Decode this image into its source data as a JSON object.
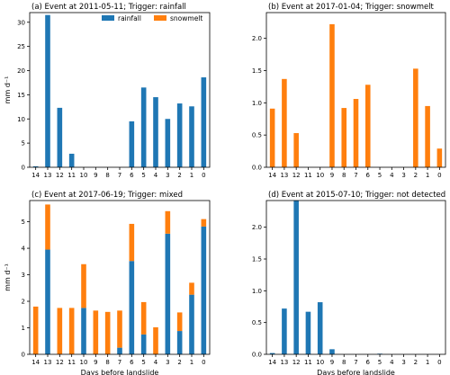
{
  "colors": {
    "rainfall": "#1f77b4",
    "snowmelt": "#ff7f0e",
    "axis": "#000000"
  },
  "chart_data": [
    {
      "type": "bar",
      "stacked": true,
      "title": "(a) Event at 2011-05-11; Trigger: rainfall",
      "xlabel": "",
      "ylabel": "mm d⁻¹",
      "categories": [
        "14",
        "13",
        "12",
        "11",
        "10",
        "9",
        "8",
        "7",
        "6",
        "5",
        "4",
        "3",
        "2",
        "1",
        "0"
      ],
      "series": [
        {
          "name": "rainfall",
          "values": [
            0.2,
            31.5,
            12.3,
            2.8,
            0,
            0,
            0,
            0,
            9.5,
            16.5,
            14.5,
            10.0,
            13.2,
            12.6,
            18.6
          ]
        },
        {
          "name": "snowmelt",
          "values": [
            0,
            0,
            0,
            0,
            0,
            0,
            0,
            0,
            0,
            0,
            0,
            0,
            0,
            0,
            0
          ]
        }
      ],
      "ylim": [
        0,
        32
      ],
      "yticks": [
        0,
        5,
        10,
        15,
        20,
        25,
        30
      ],
      "legend": {
        "position": "top-center",
        "entries": [
          "rainfall",
          "snowmelt"
        ]
      }
    },
    {
      "type": "bar",
      "stacked": true,
      "title": "(b) Event at 2017-01-04; Trigger: snowmelt",
      "xlabel": "",
      "ylabel": "",
      "categories": [
        "14",
        "13",
        "12",
        "11",
        "10",
        "9",
        "8",
        "7",
        "6",
        "5",
        "4",
        "3",
        "2",
        "1",
        "0"
      ],
      "series": [
        {
          "name": "rainfall",
          "values": [
            0,
            0,
            0,
            0,
            0,
            0,
            0,
            0,
            0,
            0,
            0,
            0,
            0,
            0,
            0
          ]
        },
        {
          "name": "snowmelt",
          "values": [
            0.91,
            1.37,
            0.53,
            0,
            0,
            2.22,
            0.92,
            1.06,
            1.28,
            0,
            0,
            0,
            1.53,
            0.95,
            0.29
          ]
        }
      ],
      "ylim": [
        0,
        2.4
      ],
      "yticks": [
        0.0,
        0.5,
        1.0,
        1.5,
        2.0
      ],
      "ytick_labels": [
        "0.0",
        "0.5",
        "1.0",
        "1.5",
        "2.0"
      ]
    },
    {
      "type": "bar",
      "stacked": true,
      "title": "(c) Event at 2017-06-19; Trigger: mixed",
      "xlabel": "Days before landslide",
      "ylabel": "mm d⁻¹",
      "categories": [
        "14",
        "13",
        "12",
        "11",
        "10",
        "9",
        "8",
        "7",
        "6",
        "5",
        "4",
        "3",
        "2",
        "1",
        "0"
      ],
      "series": [
        {
          "name": "rainfall",
          "values": [
            0,
            3.95,
            0,
            0,
            1.75,
            0,
            0,
            0.25,
            3.52,
            0.75,
            0,
            4.55,
            0.88,
            2.25,
            4.82
          ]
        },
        {
          "name": "snowmelt",
          "values": [
            1.8,
            1.7,
            1.75,
            1.75,
            1.65,
            1.65,
            1.6,
            1.4,
            1.4,
            1.22,
            1.02,
            0.85,
            0.7,
            0.45,
            0.28
          ]
        }
      ],
      "ylim": [
        0,
        5.8
      ],
      "yticks": [
        0,
        1,
        2,
        3,
        4,
        5
      ]
    },
    {
      "type": "bar",
      "stacked": true,
      "title": "(d) Event at 2015-07-10; Trigger: not detected",
      "xlabel": "Days before landslide",
      "ylabel": "",
      "categories": [
        "14",
        "13",
        "12",
        "11",
        "10",
        "9",
        "8",
        "7",
        "6",
        "5",
        "4",
        "3",
        "2",
        "1",
        "0"
      ],
      "series": [
        {
          "name": "rainfall",
          "values": [
            0.02,
            0.72,
            2.42,
            0.67,
            0.82,
            0.08,
            0,
            0,
            0,
            0.01,
            0,
            0,
            0,
            0,
            0
          ]
        },
        {
          "name": "snowmelt",
          "values": [
            0,
            0,
            0,
            0,
            0,
            0,
            0,
            0,
            0,
            0,
            0,
            0,
            0,
            0,
            0
          ]
        }
      ],
      "ylim": [
        0,
        2.42
      ],
      "yticks": [
        0.0,
        0.5,
        1.0,
        1.5,
        2.0
      ],
      "ytick_labels": [
        "0.0",
        "0.5",
        "1.0",
        "1.5",
        "2.0"
      ]
    }
  ]
}
